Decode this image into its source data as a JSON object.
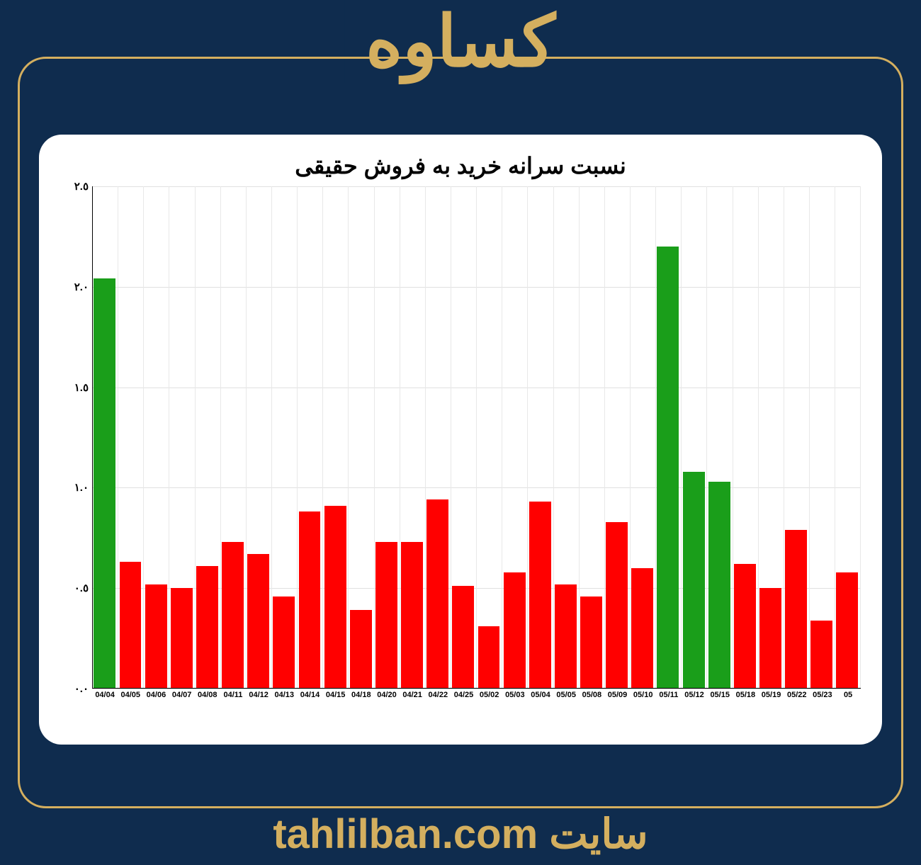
{
  "header_title": "کساوه",
  "footer_text": "سایت tahlilban.com",
  "chart": {
    "type": "bar",
    "title": "نسبت سرانه خرید به فروش حقیقی",
    "title_fontsize": 32,
    "title_color": "#000000",
    "background_color": "#ffffff",
    "panel_border_radius": 32,
    "grid_color": "#e0e0e0",
    "bar_width": 0.88,
    "ylim": [
      0.0,
      2.5
    ],
    "ytick_step": 0.5,
    "yticks": [
      "٠.٠",
      "٠.٥",
      "١.٠",
      "١.٥",
      "٢.٠",
      "٢.٥"
    ],
    "label_fontsize": 15,
    "xlabel_fontsize": 11,
    "colors": {
      "positive": "#1a9e1a",
      "negative": "#ff0000"
    },
    "categories": [
      "04/04",
      "04/05",
      "04/06",
      "04/07",
      "04/08",
      "04/11",
      "04/12",
      "04/13",
      "04/14",
      "04/15",
      "04/18",
      "04/20",
      "04/21",
      "04/22",
      "04/25",
      "05/02",
      "05/03",
      "05/04",
      "05/05",
      "05/08",
      "05/09",
      "05/10",
      "05/11",
      "05/12",
      "05/15",
      "05/18",
      "05/19",
      "05/22",
      "05/23",
      "05"
    ],
    "values": [
      2.04,
      0.63,
      0.52,
      0.5,
      0.61,
      0.73,
      0.67,
      0.46,
      0.88,
      0.91,
      0.39,
      0.73,
      0.73,
      0.94,
      0.51,
      0.31,
      0.58,
      0.93,
      0.52,
      0.46,
      0.83,
      0.6,
      2.2,
      1.08,
      1.03,
      0.62,
      0.5,
      0.79,
      0.34,
      0.58
    ],
    "bar_colors": [
      "#1a9e1a",
      "#ff0000",
      "#ff0000",
      "#ff0000",
      "#ff0000",
      "#ff0000",
      "#ff0000",
      "#ff0000",
      "#ff0000",
      "#ff0000",
      "#ff0000",
      "#ff0000",
      "#ff0000",
      "#ff0000",
      "#ff0000",
      "#ff0000",
      "#ff0000",
      "#ff0000",
      "#ff0000",
      "#ff0000",
      "#ff0000",
      "#ff0000",
      "#1a9e1a",
      "#1a9e1a",
      "#1a9e1a",
      "#ff0000",
      "#ff0000",
      "#ff0000",
      "#ff0000",
      "#ff0000"
    ]
  },
  "page_style": {
    "background_color": "#0f2c4e",
    "frame_border_color": "#d4af5f",
    "frame_border_width": 3,
    "frame_border_radius": 40,
    "accent_text_color": "#d4af5f",
    "header_fontsize": 100,
    "footer_fontsize": 58
  }
}
